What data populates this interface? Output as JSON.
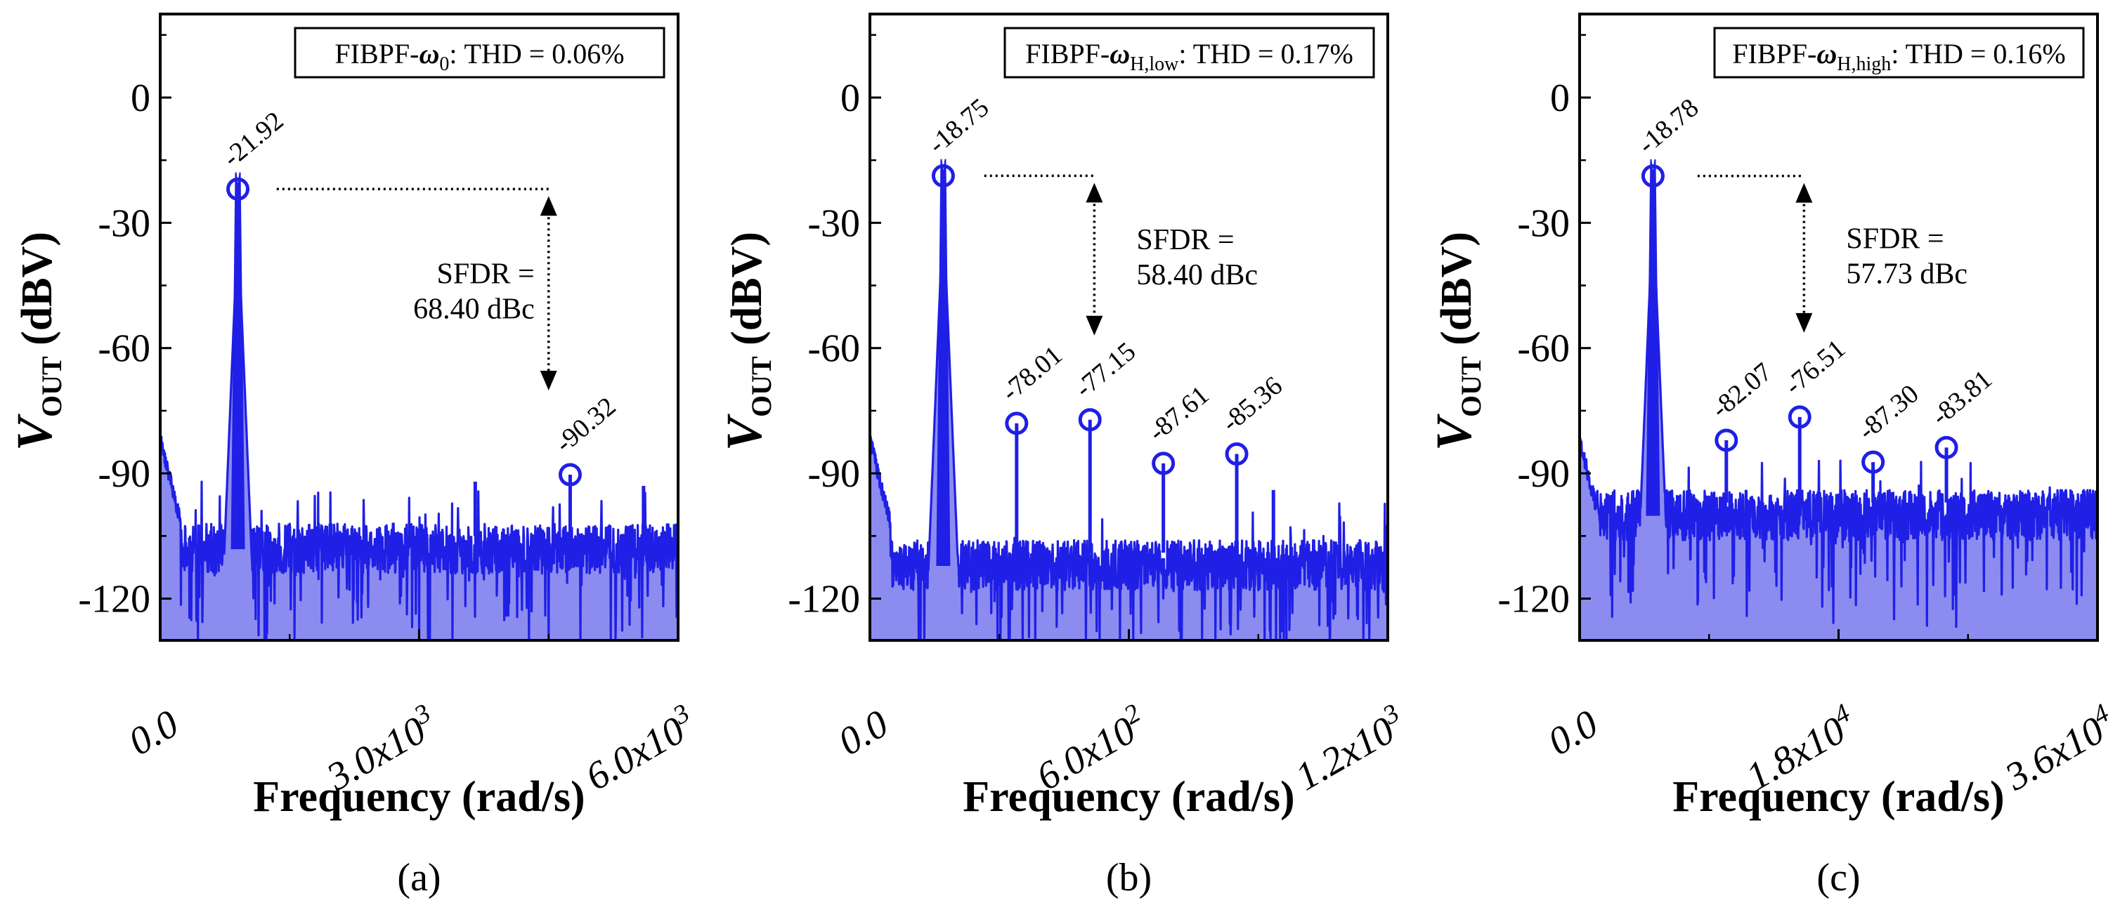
{
  "chart_data": [
    {
      "type": "line",
      "panel_label": "(a)",
      "title": {
        "prefix": "FIBPF-",
        "omega": "ω",
        "subscript": "0",
        "suffix": ": THD = 0.06%"
      },
      "thd": "0.06%",
      "xlabel": "Frequency (rad/s)",
      "ylabel": {
        "main": "V",
        "subscript": "OUT",
        "unit": " (dBV)"
      },
      "xlim": [
        0,
        6000
      ],
      "ylim": [
        -130,
        20
      ],
      "yticks": [
        0,
        -30,
        -60,
        -90,
        -120
      ],
      "ytick_labels": [
        "0",
        "-30",
        "-60",
        "-90",
        "-120"
      ],
      "xticks": [
        0,
        3000,
        6000
      ],
      "xtick_labels": [
        {
          "base": "0.0",
          "exp": ""
        },
        {
          "base": "3.0x10",
          "exp": "3"
        },
        {
          "base": "6.0x10",
          "exp": "3"
        }
      ],
      "fundamental": {
        "x": 900,
        "value": -21.92,
        "label": "-21.92"
      },
      "harmonics": [
        {
          "x": 4750,
          "value": -90.32,
          "label": "-90.32"
        }
      ],
      "spurs": [
        {
          "x": 3650,
          "value": -92
        },
        {
          "x": 5600,
          "value": -93
        }
      ],
      "noise_floor": {
        "mean": -108,
        "spread": 6,
        "min": -130
      },
      "sfdr": {
        "line1": "SFDR =",
        "line2": "68.40 dBc",
        "value": 68.4,
        "line_x_start": 1350,
        "line_x_end": 4500,
        "arrow_x": 4500
      }
    },
    {
      "type": "line",
      "panel_label": "(b)",
      "title": {
        "prefix": "FIBPF-",
        "omega": "ω",
        "subscript": "H,low",
        "suffix": ": THD = 0.17%"
      },
      "thd": "0.17%",
      "xlabel": "Frequency (rad/s)",
      "ylabel": {
        "main": "V",
        "subscript": "OUT",
        "unit": " (dBV)"
      },
      "xlim": [
        0,
        1200
      ],
      "ylim": [
        -130,
        20
      ],
      "yticks": [
        0,
        -30,
        -60,
        -90,
        -120
      ],
      "ytick_labels": [
        "0",
        "-30",
        "-60",
        "-90",
        "-120"
      ],
      "xticks": [
        0,
        600,
        1200
      ],
      "xtick_labels": [
        {
          "base": "0.0",
          "exp": ""
        },
        {
          "base": "6.0x10",
          "exp": "2"
        },
        {
          "base": "1.2x10",
          "exp": "3"
        }
      ],
      "fundamental": {
        "x": 170,
        "value": -18.75,
        "label": "-18.75"
      },
      "harmonics": [
        {
          "x": 340,
          "value": -78.01,
          "label": "-78.01"
        },
        {
          "x": 510,
          "value": -77.15,
          "label": "-77.15"
        },
        {
          "x": 680,
          "value": -87.61,
          "label": "-87.61"
        },
        {
          "x": 850,
          "value": -85.36,
          "label": "-85.36"
        }
      ],
      "spurs": [
        {
          "x": 935,
          "value": -94
        }
      ],
      "noise_floor": {
        "mean": -112,
        "spread": 6,
        "min": -130
      },
      "sfdr": {
        "line1": "SFDR =",
        "line2": "58.40 dBc",
        "value": 58.4,
        "line_x_start": 265,
        "line_x_end": 520,
        "arrow_x": 520
      }
    },
    {
      "type": "line",
      "panel_label": "(c)",
      "title": {
        "prefix": "FIBPF-",
        "omega": "ω",
        "subscript": "H,high",
        "suffix": ": THD = 0.16%"
      },
      "thd": "0.16%",
      "xlabel": "Frequency (rad/s)",
      "ylabel": {
        "main": "V",
        "subscript": "OUT",
        "unit": " (dBV)"
      },
      "xlim": [
        0,
        36000
      ],
      "ylim": [
        -130,
        20
      ],
      "yticks": [
        0,
        -30,
        -60,
        -90,
        -120
      ],
      "ytick_labels": [
        "0",
        "-30",
        "-60",
        "-90",
        "-120"
      ],
      "xticks": [
        0,
        18000,
        36000
      ],
      "xtick_labels": [
        {
          "base": "0.0",
          "exp": ""
        },
        {
          "base": "1.8x10",
          "exp": "4"
        },
        {
          "base": "3.6x10",
          "exp": "4"
        }
      ],
      "fundamental": {
        "x": 5100,
        "value": -18.78,
        "label": "-18.78"
      },
      "harmonics": [
        {
          "x": 10200,
          "value": -82.07,
          "label": "-82.07"
        },
        {
          "x": 15300,
          "value": -76.51,
          "label": "-76.51"
        },
        {
          "x": 20400,
          "value": -87.3,
          "label": "-87.30"
        },
        {
          "x": 25500,
          "value": -83.81,
          "label": "-83.81"
        }
      ],
      "spurs": [],
      "noise_floor": {
        "mean": -100,
        "spread": 6,
        "min": -130
      },
      "sfdr": {
        "line1": "SFDR =",
        "line2": "57.73 dBc",
        "value": 57.73,
        "line_x_start": 8200,
        "line_x_end": 15600,
        "arrow_x": 15600
      }
    }
  ]
}
